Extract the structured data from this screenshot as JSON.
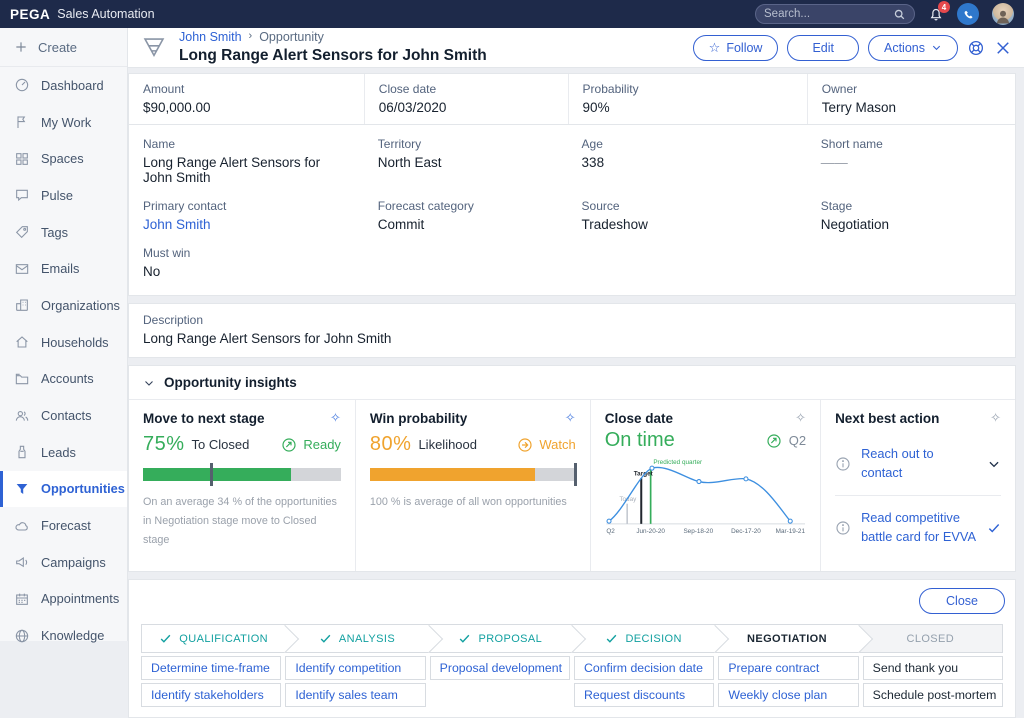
{
  "colors": {
    "navy": "#1e2a4a",
    "accent": "#3360d2",
    "link": "#2e62d4",
    "green": "#35ad5b",
    "orange": "#f0a32e",
    "teal": "#12a0a0",
    "badge_red": "#e5484d"
  },
  "navbar": {
    "brand": "PEGA",
    "app_title": "Sales Automation",
    "search_placeholder": "Search...",
    "notification_count": "4"
  },
  "sidebar": {
    "create_label": "Create",
    "items": [
      {
        "label": "Dashboard",
        "icon": "dashboard-icon",
        "active": false
      },
      {
        "label": "My Work",
        "icon": "flag-icon",
        "active": false
      },
      {
        "label": "Spaces",
        "icon": "grid-icon",
        "active": false
      },
      {
        "label": "Pulse",
        "icon": "chat-icon",
        "active": false
      },
      {
        "label": "Tags",
        "icon": "tag-icon",
        "active": false
      },
      {
        "label": "Emails",
        "icon": "envelope-icon",
        "active": false
      },
      {
        "label": "Organizations",
        "icon": "building-icon",
        "active": false
      },
      {
        "label": "Households",
        "icon": "home-icon",
        "active": false
      },
      {
        "label": "Accounts",
        "icon": "folder-icon",
        "active": false
      },
      {
        "label": "Contacts",
        "icon": "people-icon",
        "active": false
      },
      {
        "label": "Leads",
        "icon": "flashlight-icon",
        "active": false
      },
      {
        "label": "Opportunities",
        "icon": "funnel-icon",
        "active": true
      },
      {
        "label": "Forecast",
        "icon": "cloud-icon",
        "active": false
      },
      {
        "label": "Campaigns",
        "icon": "megaphone-icon",
        "active": false
      },
      {
        "label": "Appointments",
        "icon": "calendar-icon",
        "active": false
      },
      {
        "label": "Knowledge",
        "icon": "globe-icon",
        "active": false
      }
    ]
  },
  "header": {
    "breadcrumb_contact": "John Smith",
    "breadcrumb_separator": "›",
    "breadcrumb_section": "Opportunity",
    "title": "Long Range Alert Sensors for John Smith",
    "follow_label": "Follow",
    "edit_label": "Edit",
    "actions_label": "Actions"
  },
  "details": {
    "summary": [
      {
        "label": "Amount",
        "value": "$90,000.00"
      },
      {
        "label": "Close date",
        "value": "06/03/2020"
      },
      {
        "label": "Probability",
        "value": "90%"
      },
      {
        "label": "Owner",
        "value": "Terry Mason"
      }
    ],
    "fields": [
      {
        "label": "Name",
        "value": "Long Range Alert Sensors for John Smith"
      },
      {
        "label": "Territory",
        "value": "North East"
      },
      {
        "label": "Age",
        "value": "338"
      },
      {
        "label": "Short name",
        "value": "——"
      },
      {
        "label": "Primary contact",
        "value": "John Smith"
      },
      {
        "label": "Forecast category",
        "value": "Commit"
      },
      {
        "label": "Source",
        "value": "Tradeshow"
      },
      {
        "label": "Stage",
        "value": "Negotiation"
      },
      {
        "label": "Must win",
        "value": "No"
      }
    ]
  },
  "description": {
    "label": "Description",
    "value": "Long Range Alert Sensors for John Smith"
  },
  "insights": {
    "section_title": "Opportunity insights",
    "move_next_stage": {
      "title": "Move to next stage",
      "percent": "75%",
      "target_label": "To  Closed",
      "status": "Ready",
      "bar": {
        "value_percent": 75,
        "marker_percent": 34,
        "color": "#35ad5b"
      },
      "caption": "On an average 34 % of the opportunities in Negotiation stage move to Closed  stage"
    },
    "win_probability": {
      "title": "Win probability",
      "percent": "80%",
      "suffix": "Likelihood",
      "status": "Watch",
      "bar": {
        "value_percent": 80,
        "marker_percent": 99,
        "color": "#f0a32e"
      },
      "caption": "100 % is  average of all won opportunities"
    },
    "close_date": {
      "title": "Close date",
      "status_text": "On time",
      "quarter": "Q2",
      "chart_data": {
        "type": "line",
        "x_labels": [
          "Q2",
          "Jun-20-20",
          "Sep-18-20",
          "Dec-17-20",
          "Mar-19-21"
        ],
        "points_relative": [
          [
            6,
            96
          ],
          [
            70,
            17
          ],
          [
            140,
            37
          ],
          [
            210,
            33
          ],
          [
            276,
            96
          ]
        ],
        "annotations": {
          "today": "Today",
          "target": "Target",
          "predicted": "Predicted quarter"
        },
        "line_color": "#3d8fe0"
      }
    },
    "next_best_action": {
      "title": "Next best action",
      "items": [
        {
          "label": "Reach out to contact",
          "trailing": "chevron-down-icon"
        },
        {
          "label": "Read competitive battle card for  EVVA",
          "trailing": "check-icon"
        }
      ]
    }
  },
  "footer": {
    "close_label": "Close"
  },
  "stages": {
    "items": [
      {
        "label": "QUALIFICATION",
        "state": "done",
        "tasks": [
          "Determine time-frame",
          "Identify stakeholders"
        ]
      },
      {
        "label": "ANALYSIS",
        "state": "done",
        "tasks": [
          "Identify competition",
          "Identify sales team"
        ]
      },
      {
        "label": "PROPOSAL",
        "state": "done",
        "tasks": [
          "Proposal development"
        ]
      },
      {
        "label": "DECISION",
        "state": "done",
        "tasks": [
          "Confirm decision date",
          "Request discounts"
        ]
      },
      {
        "label": "NEGOTIATION",
        "state": "current",
        "tasks": [
          "Prepare contract",
          "Weekly close plan"
        ]
      },
      {
        "label": "CLOSED",
        "state": "future",
        "tasks": [
          "Send thank you",
          "Schedule post-mortem"
        ]
      }
    ]
  }
}
